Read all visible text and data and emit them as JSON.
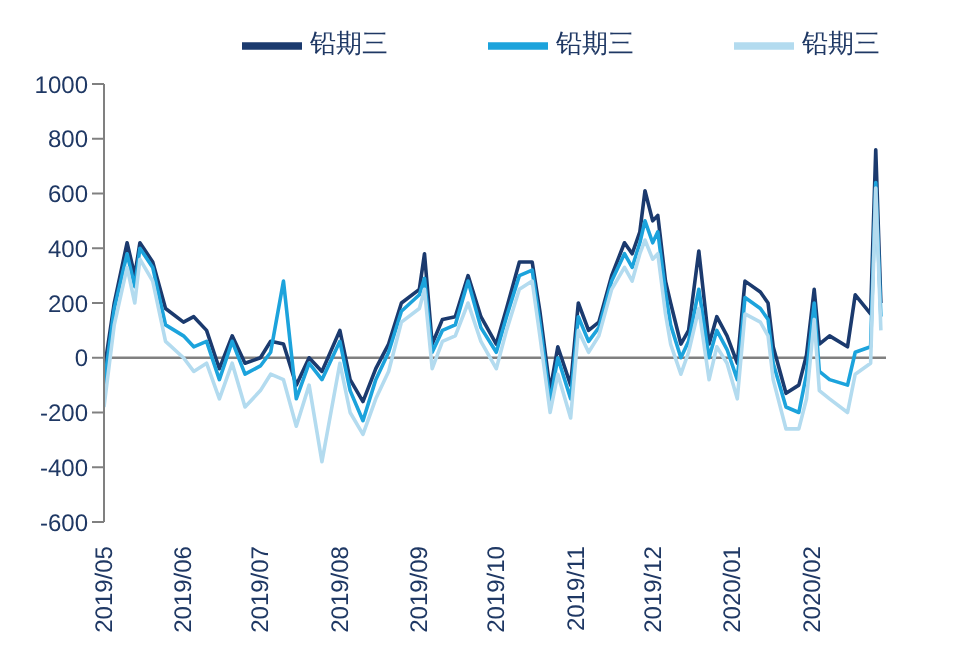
{
  "chart_data": {
    "type": "line",
    "x": [
      "2019-05-01",
      "2019-05-05",
      "2019-05-10",
      "2019-05-13",
      "2019-05-15",
      "2019-05-20",
      "2019-05-25",
      "2019-06-01",
      "2019-06-05",
      "2019-06-10",
      "2019-06-15",
      "2019-06-20",
      "2019-06-25",
      "2019-07-01",
      "2019-07-05",
      "2019-07-10",
      "2019-07-15",
      "2019-07-20",
      "2019-07-25",
      "2019-08-01",
      "2019-08-05",
      "2019-08-10",
      "2019-08-15",
      "2019-08-20",
      "2019-08-25",
      "2019-09-01",
      "2019-09-03",
      "2019-09-06",
      "2019-09-10",
      "2019-09-15",
      "2019-09-20",
      "2019-09-25",
      "2019-10-01",
      "2019-10-05",
      "2019-10-10",
      "2019-10-15",
      "2019-10-18",
      "2019-10-22",
      "2019-10-25",
      "2019-10-30",
      "2019-11-02",
      "2019-11-06",
      "2019-11-10",
      "2019-11-15",
      "2019-11-20",
      "2019-11-23",
      "2019-11-26",
      "2019-11-28",
      "2019-12-01",
      "2019-12-03",
      "2019-12-06",
      "2019-12-08",
      "2019-12-12",
      "2019-12-15",
      "2019-12-19",
      "2019-12-23",
      "2019-12-26",
      "2019-12-30",
      "2020-01-03",
      "2020-01-06",
      "2020-01-12",
      "2020-01-15",
      "2020-01-17",
      "2020-01-22",
      "2020-01-27",
      "2020-01-30",
      "2020-02-02",
      "2020-02-04",
      "2020-02-08",
      "2020-02-15",
      "2020-02-18",
      "2020-02-24",
      "2020-02-26",
      "2020-02-28"
    ],
    "series": [
      {
        "name": "铅期三",
        "color": "#1b3a6e",
        "values": [
          -50,
          200,
          420,
          300,
          420,
          350,
          180,
          130,
          150,
          100,
          -40,
          80,
          -20,
          0,
          60,
          50,
          -100,
          0,
          -50,
          100,
          -80,
          -160,
          -40,
          50,
          200,
          250,
          380,
          50,
          140,
          150,
          300,
          150,
          50,
          180,
          350,
          350,
          170,
          -120,
          40,
          -100,
          200,
          100,
          130,
          300,
          420,
          380,
          460,
          610,
          500,
          520,
          280,
          200,
          50,
          100,
          390,
          50,
          150,
          80,
          -20,
          280,
          240,
          200,
          40,
          -130,
          -100,
          10,
          250,
          50,
          80,
          40,
          230,
          160,
          760,
          200
        ]
      },
      {
        "name": "铅期三",
        "color": "#1ca3dc",
        "values": [
          -100,
          180,
          380,
          260,
          400,
          330,
          120,
          80,
          40,
          60,
          -80,
          60,
          -60,
          -30,
          20,
          280,
          -150,
          -20,
          -80,
          60,
          -120,
          -230,
          -80,
          20,
          170,
          230,
          290,
          20,
          100,
          120,
          280,
          110,
          20,
          150,
          300,
          320,
          130,
          -160,
          0,
          -150,
          150,
          60,
          110,
          280,
          380,
          330,
          420,
          500,
          420,
          460,
          240,
          120,
          0,
          60,
          250,
          0,
          100,
          30,
          -80,
          220,
          180,
          140,
          -20,
          -180,
          -200,
          -60,
          200,
          -50,
          -80,
          -100,
          20,
          40,
          640,
          150
        ]
      },
      {
        "name": "铅期三",
        "color": "#b3dbef",
        "values": [
          -180,
          120,
          330,
          200,
          360,
          280,
          60,
          0,
          -50,
          -20,
          -150,
          -20,
          -180,
          -120,
          -60,
          -80,
          -250,
          -100,
          -380,
          -20,
          -200,
          -280,
          -150,
          -50,
          130,
          180,
          250,
          -40,
          60,
          80,
          200,
          60,
          -40,
          100,
          250,
          280,
          80,
          -200,
          -60,
          -220,
          100,
          20,
          80,
          250,
          330,
          280,
          380,
          430,
          360,
          380,
          160,
          50,
          -60,
          20,
          180,
          -80,
          40,
          -20,
          -150,
          160,
          130,
          80,
          -80,
          -260,
          -260,
          -150,
          140,
          -120,
          -150,
          -200,
          -60,
          -20,
          620,
          100
        ]
      }
    ],
    "xlim": [
      "2019-05-01",
      "2020-03-01"
    ],
    "xticks": [
      {
        "value": "2019-05-01",
        "label": "2019/05"
      },
      {
        "value": "2019-06-01",
        "label": "2019/06"
      },
      {
        "value": "2019-07-01",
        "label": "2019/07"
      },
      {
        "value": "2019-08-01",
        "label": "2019/08"
      },
      {
        "value": "2019-09-01",
        "label": "2019/09"
      },
      {
        "value": "2019-10-01",
        "label": "2019/10"
      },
      {
        "value": "2019-11-01",
        "label": "2019/11"
      },
      {
        "value": "2019-12-01",
        "label": "2019/12"
      },
      {
        "value": "2020-01-01",
        "label": "2020/01"
      },
      {
        "value": "2020-02-01",
        "label": "2020/02"
      }
    ],
    "ylim": [
      -600,
      1000
    ],
    "yticks": [
      -600,
      -400,
      -200,
      0,
      200,
      400,
      600,
      800,
      1000
    ],
    "ref_lines": [
      {
        "axis": "y",
        "value": 0,
        "label": null,
        "color": "#808080"
      }
    ],
    "grid": false,
    "legend": "top",
    "marker": "none",
    "line_style": "solid"
  }
}
